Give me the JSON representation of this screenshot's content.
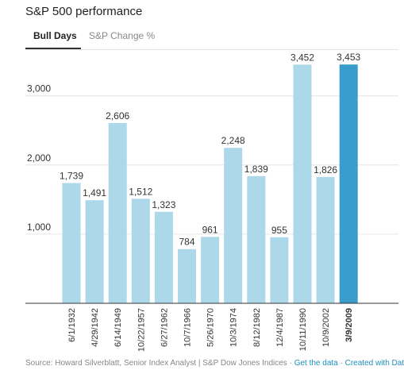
{
  "header": {
    "title": "S&P 500 performance"
  },
  "tabs": [
    {
      "label": "Bull Days",
      "active": true
    },
    {
      "label": "S&P Change %",
      "active": false
    }
  ],
  "chart_data": {
    "type": "bar",
    "title": "",
    "xlabel": "",
    "ylabel": "",
    "categories": [
      "6/1/1932",
      "4/29/1942",
      "6/14/1949",
      "10/22/1957",
      "6/27/1962",
      "10/7/1966",
      "5/26/1970",
      "10/3/1974",
      "8/12/1982",
      "12/4/1987",
      "10/11/1990",
      "10/9/2002",
      "3/9/2009"
    ],
    "values": [
      1739,
      1491,
      2606,
      1512,
      1323,
      784,
      961,
      2248,
      1839,
      955,
      3452,
      1826,
      3453
    ],
    "data_labels": [
      "1,739",
      "1,491",
      "2,606",
      "1,512",
      "1,323",
      "784",
      "961",
      "2,248",
      "1,839",
      "955",
      "3,452",
      "1,826",
      "3,453"
    ],
    "yticks": [
      1000,
      2000,
      3000
    ],
    "ytick_labels": [
      "1,000",
      "2,000",
      "3,000"
    ],
    "ylim": [
      0,
      3650
    ],
    "grid": true,
    "highlight_index": 12,
    "colors": {
      "bar": "#add8ea",
      "highlight": "#3a9ccb",
      "grid": "#e6e6e6",
      "axis": "#333333"
    }
  },
  "footer": {
    "source": "Source: Howard Silverblatt, Senior Index Analyst | S&P Dow Jones Indices · ",
    "get_data": "Get the data",
    "sep": " · ",
    "created": "Created with Datawrapper"
  }
}
